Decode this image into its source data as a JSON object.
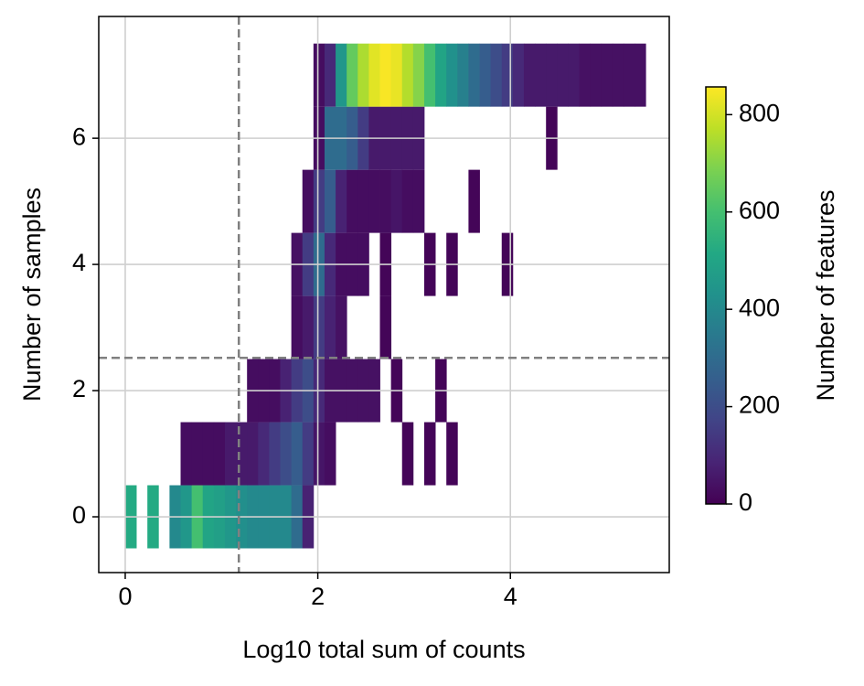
{
  "chart_data": {
    "type": "heatmap",
    "xlabel": "Log10 total sum of counts",
    "ylabel": "Number of samples",
    "colorbar_label": "Number of features",
    "colormap": "viridis",
    "xlim": [
      -0.275,
      5.65
    ],
    "xticks": [
      0,
      2,
      4
    ],
    "ylim": [
      -0.884,
      7.93
    ],
    "yticks": [
      0,
      2,
      4,
      6
    ],
    "clim": [
      0,
      857
    ],
    "cticks": [
      0,
      200,
      400,
      600,
      800
    ],
    "grid": true,
    "vlines": [
      1.18
    ],
    "hlines": [
      2.52
    ],
    "line_color": "#808080",
    "xbins": [
      0,
      0.115,
      0.23,
      0.345,
      0.46,
      0.575,
      0.69,
      0.805,
      0.92,
      1.035,
      1.15,
      1.265,
      1.38,
      1.495,
      1.61,
      1.725,
      1.84,
      1.955,
      2.07,
      2.185,
      2.3,
      2.415,
      2.53,
      2.645,
      2.76,
      2.875,
      2.99,
      3.105,
      3.22,
      3.335,
      3.45,
      3.565,
      3.68,
      3.795,
      3.91,
      4.025,
      4.14,
      4.255,
      4.37,
      4.485,
      4.6,
      4.715,
      4.83,
      4.945,
      5.06,
      5.175,
      5.29,
      5.405
    ],
    "y": [
      0,
      1,
      2,
      3,
      4,
      5,
      6,
      7
    ],
    "z": [
      [
        520,
        null,
        520,
        null,
        400,
        450,
        600,
        500,
        480,
        450,
        420,
        400,
        400,
        400,
        400,
        300,
        80,
        null,
        null,
        null,
        null,
        null,
        null,
        null,
        null,
        null,
        null,
        null,
        null,
        null,
        null,
        null,
        null,
        null,
        null,
        null,
        null,
        null,
        null,
        null,
        null,
        null,
        null,
        null,
        null,
        null,
        null
      ],
      [
        null,
        null,
        null,
        null,
        null,
        30,
        30,
        30,
        30,
        60,
        60,
        60,
        100,
        150,
        200,
        250,
        150,
        50,
        30,
        null,
        null,
        null,
        null,
        null,
        null,
        10,
        null,
        10,
        null,
        10,
        null,
        null,
        null,
        null,
        null,
        null,
        null,
        null,
        null,
        null,
        null,
        null,
        null,
        null,
        null,
        null,
        null
      ],
      [
        null,
        null,
        null,
        null,
        null,
        null,
        null,
        null,
        null,
        null,
        null,
        30,
        30,
        30,
        80,
        150,
        200,
        100,
        40,
        40,
        40,
        40,
        40,
        null,
        10,
        null,
        null,
        null,
        10,
        null,
        null,
        null,
        null,
        null,
        null,
        null,
        null,
        null,
        null,
        null,
        null,
        null,
        null,
        null,
        null,
        null,
        null
      ],
      [
        null,
        null,
        null,
        null,
        null,
        null,
        null,
        null,
        null,
        null,
        null,
        null,
        null,
        null,
        null,
        30,
        60,
        150,
        80,
        40,
        null,
        null,
        null,
        10,
        null,
        null,
        null,
        null,
        null,
        null,
        null,
        null,
        null,
        null,
        null,
        null,
        null,
        null,
        null,
        null,
        null,
        null,
        null,
        null,
        null,
        null,
        null
      ],
      [
        null,
        null,
        null,
        null,
        null,
        null,
        null,
        null,
        null,
        null,
        null,
        null,
        null,
        null,
        null,
        40,
        150,
        300,
        100,
        30,
        30,
        30,
        null,
        10,
        null,
        null,
        null,
        10,
        null,
        10,
        null,
        null,
        null,
        null,
        10,
        null,
        null,
        null,
        null,
        null,
        null,
        null,
        null,
        null,
        null,
        null,
        null
      ],
      [
        null,
        null,
        null,
        null,
        null,
        null,
        null,
        null,
        null,
        null,
        null,
        null,
        null,
        null,
        null,
        null,
        30,
        150,
        250,
        80,
        30,
        30,
        30,
        30,
        50,
        30,
        30,
        null,
        null,
        null,
        null,
        10,
        null,
        null,
        null,
        null,
        null,
        null,
        null,
        null,
        null,
        null,
        null,
        null,
        null,
        null,
        null
      ],
      [
        null,
        null,
        null,
        null,
        null,
        null,
        null,
        null,
        null,
        null,
        null,
        null,
        null,
        null,
        null,
        null,
        null,
        30,
        300,
        300,
        250,
        150,
        60,
        60,
        60,
        60,
        60,
        null,
        null,
        null,
        null,
        null,
        null,
        null,
        null,
        null,
        null,
        null,
        10,
        null,
        null,
        null,
        null,
        null,
        null,
        null,
        null
      ],
      [
        null,
        null,
        null,
        null,
        null,
        null,
        null,
        null,
        null,
        null,
        null,
        null,
        null,
        null,
        null,
        null,
        null,
        30,
        100,
        450,
        650,
        750,
        820,
        850,
        830,
        760,
        700,
        600,
        500,
        430,
        370,
        300,
        250,
        200,
        150,
        100,
        60,
        60,
        60,
        60,
        60,
        40,
        40,
        40,
        40,
        40,
        40
      ]
    ]
  }
}
